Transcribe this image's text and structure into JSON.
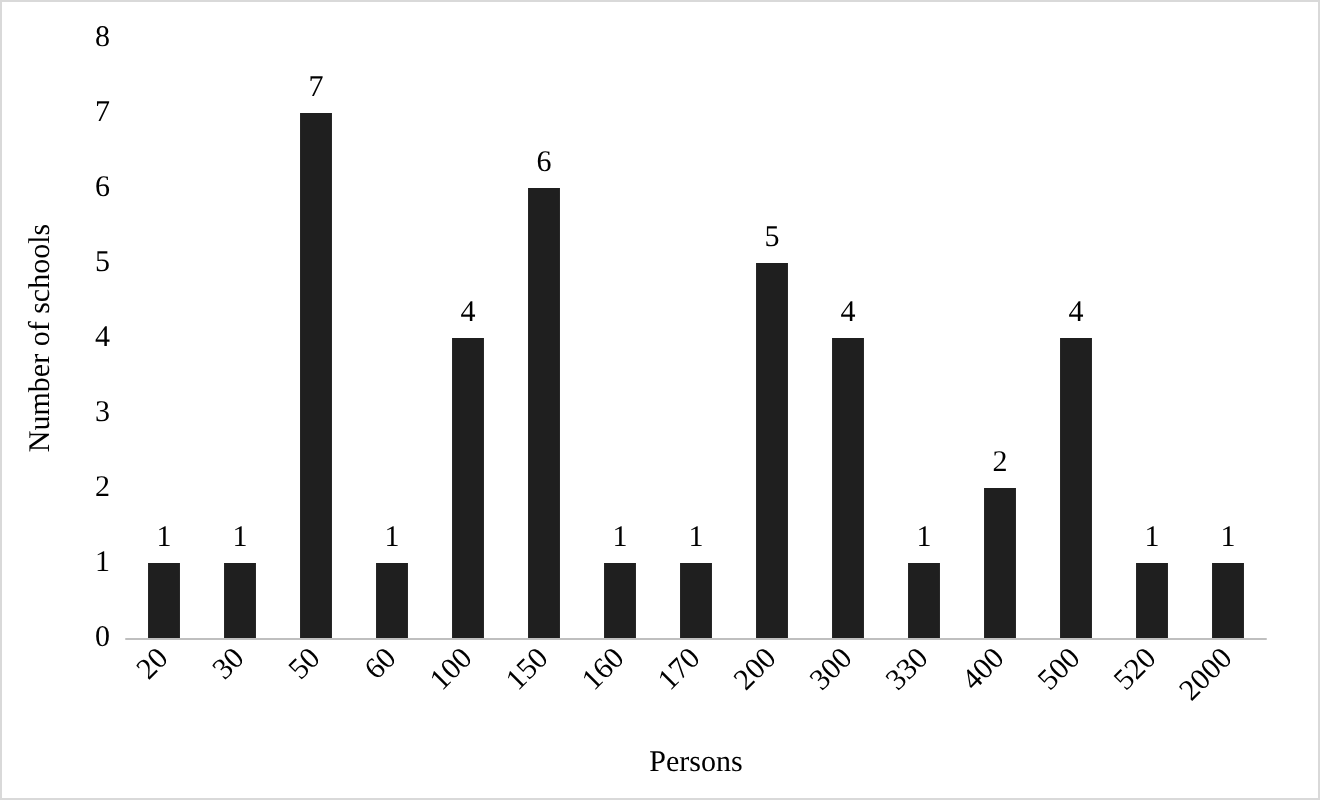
{
  "chart_data": {
    "type": "bar",
    "xlabel": "Persons",
    "ylabel": "Number of schools",
    "categories": [
      "20",
      "30",
      "50",
      "60",
      "100",
      "150",
      "160",
      "170",
      "200",
      "300",
      "330",
      "400",
      "500",
      "520",
      "2000"
    ],
    "values": [
      1,
      1,
      7,
      1,
      4,
      6,
      1,
      1,
      5,
      4,
      1,
      2,
      4,
      1,
      1
    ],
    "color": "#1f1f1f",
    "ylim": [
      0,
      8
    ],
    "yticks": [
      0,
      1,
      2,
      3,
      4,
      5,
      6,
      7,
      8
    ],
    "grid": false,
    "data_labels": true
  }
}
